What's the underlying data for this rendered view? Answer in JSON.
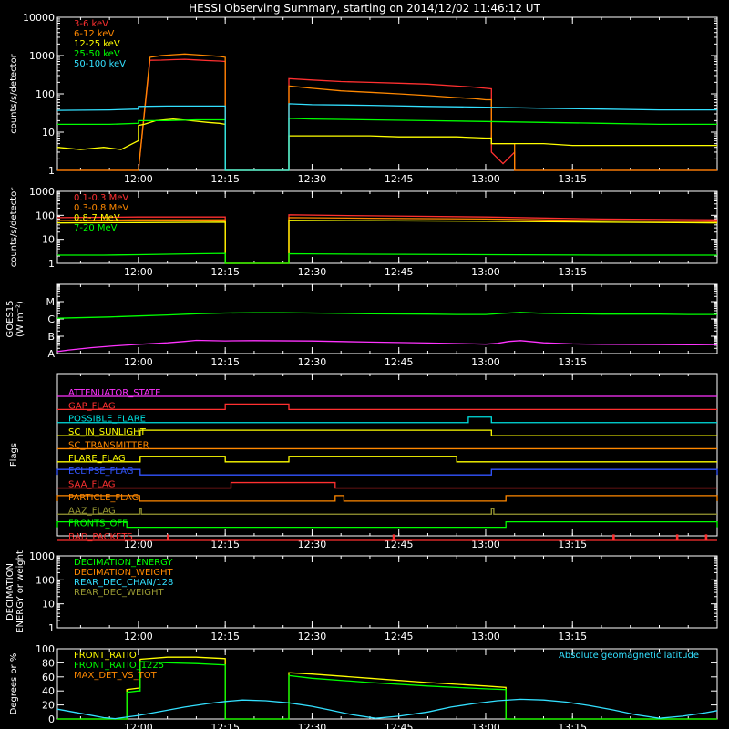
{
  "title": "HESSI Observing Summary, starting on 2014/12/02 11:46:12 UT",
  "time_axis": {
    "start_min": -14,
    "end_min": 100,
    "ticks": [
      {
        "min": 0,
        "label": "12:00"
      },
      {
        "min": 15,
        "label": "12:15"
      },
      {
        "min": 30,
        "label": "12:30"
      },
      {
        "min": 45,
        "label": "12:45"
      },
      {
        "min": 60,
        "label": "13:00"
      },
      {
        "min": 75,
        "label": "13:15"
      }
    ]
  },
  "chart_data": [
    {
      "id": "low",
      "type": "line",
      "ylabel": "counts/s/detector",
      "yscale": "log",
      "ylim": [
        1,
        10000
      ],
      "yticks": [
        {
          "v": 1,
          "label": "1"
        },
        {
          "v": 10,
          "label": "10"
        },
        {
          "v": 100,
          "label": "100"
        },
        {
          "v": 1000,
          "label": "1000"
        },
        {
          "v": 10000,
          "label": "10000"
        }
      ],
      "legend_position": "top-left",
      "series": [
        {
          "name": "3-6 keV",
          "color": "#ff3030",
          "x": [
            -14,
            0,
            0,
            2,
            4,
            6,
            8,
            10,
            12,
            14,
            15,
            15,
            20,
            26,
            26,
            30,
            35,
            40,
            45,
            50,
            55,
            58,
            60,
            61,
            61,
            63,
            65,
            65,
            70,
            75,
            80,
            85,
            90,
            95,
            100
          ],
          "y": [
            1,
            1,
            1,
            750,
            760,
            780,
            800,
            770,
            740,
            720,
            700,
            1,
            1,
            1,
            250,
            230,
            210,
            200,
            190,
            180,
            160,
            150,
            140,
            135,
            3,
            1.5,
            3,
            1,
            1,
            1,
            1,
            1,
            1,
            1,
            1
          ]
        },
        {
          "name": "6-12 keV",
          "color": "#ff8800",
          "x": [
            -14,
            0,
            0,
            2,
            4,
            6,
            8,
            10,
            12,
            14,
            15,
            15,
            20,
            26,
            26,
            30,
            35,
            40,
            45,
            50,
            55,
            58,
            60,
            61,
            61,
            65,
            65,
            70,
            75,
            80,
            85,
            90,
            95,
            100
          ],
          "y": [
            1,
            1,
            1,
            900,
            1000,
            1050,
            1100,
            1050,
            1000,
            950,
            900,
            1,
            1,
            1,
            160,
            140,
            120,
            110,
            100,
            90,
            80,
            75,
            70,
            70,
            5,
            5,
            1,
            1,
            1,
            1,
            1,
            1,
            1,
            1
          ]
        },
        {
          "name": "12-25 keV",
          "color": "#ffff00",
          "x": [
            -14,
            -10,
            -6,
            -3,
            -1,
            0,
            0,
            1,
            3,
            6,
            9,
            12,
            14,
            15,
            15,
            20,
            26,
            26,
            30,
            35,
            40,
            45,
            50,
            55,
            60,
            61,
            61,
            65,
            65,
            70,
            75,
            80,
            85,
            90,
            95,
            100
          ],
          "y": [
            4,
            3.5,
            4,
            3.5,
            5,
            6,
            15,
            16,
            20,
            22,
            20,
            18,
            17,
            16,
            1,
            1,
            1,
            8,
            8,
            8,
            8,
            7.5,
            7.5,
            7.5,
            7,
            7,
            5,
            5,
            5,
            5,
            4.5,
            4.5,
            4.5,
            4.5,
            4.5,
            4.5
          ]
        },
        {
          "name": "25-50 keV",
          "color": "#00ff00",
          "x": [
            -14,
            -5,
            0,
            0,
            5,
            10,
            15,
            15,
            20,
            26,
            26,
            30,
            40,
            50,
            60,
            70,
            80,
            90,
            100
          ],
          "y": [
            16,
            16,
            17,
            20,
            20,
            21,
            21,
            1,
            1,
            1,
            23,
            22,
            21,
            20,
            19,
            18,
            17,
            16,
            16
          ]
        },
        {
          "name": "50-100 keV",
          "color": "#33e0ff",
          "x": [
            -14,
            -5,
            0,
            0,
            5,
            10,
            15,
            15,
            20,
            26,
            26,
            30,
            40,
            50,
            60,
            70,
            80,
            90,
            100
          ],
          "y": [
            37,
            38,
            40,
            47,
            48,
            48,
            48,
            1,
            1,
            1,
            55,
            52,
            50,
            47,
            45,
            42,
            40,
            38,
            38
          ]
        }
      ]
    },
    {
      "id": "high",
      "type": "line",
      "ylabel": "counts/s/detector",
      "yscale": "log",
      "ylim": [
        1,
        1000
      ],
      "yticks": [
        {
          "v": 1,
          "label": "1"
        },
        {
          "v": 10,
          "label": "10"
        },
        {
          "v": 100,
          "label": "100"
        },
        {
          "v": 1000,
          "label": "1000"
        }
      ],
      "legend_position": "top-left",
      "series": [
        {
          "name": "0.1-0.3 MeV",
          "color": "#ff3030",
          "x": [
            -14,
            0,
            15,
            15,
            20,
            26,
            26,
            40,
            60,
            80,
            100
          ],
          "y": [
            80,
            85,
            85,
            1,
            1,
            1,
            105,
            95,
            85,
            70,
            65
          ]
        },
        {
          "name": "0.3-0.8 MeV",
          "color": "#ff8800",
          "x": [
            -14,
            0,
            15,
            15,
            20,
            26,
            26,
            40,
            60,
            80,
            100
          ],
          "y": [
            60,
            65,
            65,
            1,
            1,
            1,
            80,
            75,
            70,
            60,
            55
          ]
        },
        {
          "name": "0.8-7 MeV",
          "color": "#ffff00",
          "x": [
            -14,
            0,
            15,
            15,
            20,
            26,
            26,
            40,
            60,
            80,
            100
          ],
          "y": [
            48,
            50,
            52,
            1,
            1,
            1,
            62,
            60,
            57,
            52,
            48
          ]
        },
        {
          "name": "7-20 MeV",
          "color": "#00ff00",
          "x": [
            -14,
            -6,
            0,
            5,
            10,
            15,
            15,
            20,
            26,
            26,
            40,
            60,
            80,
            100
          ],
          "y": [
            2.2,
            2.2,
            2.3,
            2.4,
            2.5,
            2.6,
            1,
            1,
            1,
            2.5,
            2.4,
            2.3,
            2.2,
            2.2
          ]
        }
      ]
    },
    {
      "id": "goes",
      "type": "line",
      "ylabel": "GOES15",
      "ylabel2": "(W m⁻²)",
      "yscale": "log",
      "ylim": [
        1e-08,
        0.0001
      ],
      "yticks": [
        {
          "v": 1e-08,
          "label": "A"
        },
        {
          "v": 1e-07,
          "label": "B"
        },
        {
          "v": 1e-06,
          "label": "C"
        },
        {
          "v": 1e-05,
          "label": "M"
        }
      ],
      "series": [
        {
          "color": "#00ff00",
          "x": [
            -14,
            -5,
            0,
            5,
            10,
            15,
            20,
            25,
            30,
            40,
            50,
            55,
            60,
            63,
            66,
            70,
            75,
            80,
            90,
            95,
            100
          ],
          "y": [
            1.1e-06,
            1.3e-06,
            1.5e-06,
            1.7e-06,
            2e-06,
            2.2e-06,
            2.3e-06,
            2.3e-06,
            2.2e-06,
            2e-06,
            1.9e-06,
            1.8e-06,
            1.8e-06,
            2.1e-06,
            2.4e-06,
            2.1e-06,
            2e-06,
            1.9e-06,
            1.9e-06,
            1.8e-06,
            1.8e-06
          ]
        },
        {
          "color": "#ff33ff",
          "x": [
            -14,
            -12,
            -8,
            -4,
            0,
            5,
            8,
            10,
            15,
            20,
            30,
            40,
            50,
            55,
            58,
            60,
            62,
            64,
            66,
            70,
            75,
            80,
            90,
            95,
            100
          ],
          "y": [
            1.3e-08,
            1.6e-08,
            2.2e-08,
            2.8e-08,
            3.4e-08,
            4.2e-08,
            5e-08,
            5.8e-08,
            5.4e-08,
            5.6e-08,
            5.3e-08,
            4.6e-08,
            4.1e-08,
            3.8e-08,
            3.6e-08,
            3.5e-08,
            3.9e-08,
            5e-08,
            5.6e-08,
            4.2e-08,
            3.6e-08,
            3.4e-08,
            3.3e-08,
            3.2e-08,
            3.3e-08
          ]
        }
      ]
    },
    {
      "id": "flags",
      "type": "line",
      "ylabel": "Flags",
      "flags": [
        {
          "name": "ATTENUATOR_STATE",
          "color": "#ff33ff",
          "on": []
        },
        {
          "name": "GAP_FLAG",
          "color": "#ff3030",
          "on": [
            [
              15,
              26
            ]
          ]
        },
        {
          "name": "POSSIBLE_FLARE",
          "color": "#00e0e0",
          "on": [
            [
              57,
              61
            ]
          ]
        },
        {
          "name": "SC_IN_SUNLIGHT",
          "color": "#ffff00",
          "on": [
            [
              0.3,
              61
            ]
          ]
        },
        {
          "name": "SC_TRANSMITTER",
          "color": "#ff8800",
          "on": []
        },
        {
          "name": "FLARE_FLAG",
          "color": "#ffff00",
          "on": [
            [
              0.3,
              15
            ],
            [
              26,
              55
            ]
          ]
        },
        {
          "name": "ECLIPSE_FLAG",
          "color": "#3355ff",
          "on": [
            [
              -14,
              0.3
            ],
            [
              61,
              100
            ]
          ]
        },
        {
          "name": "SAA_FLAG",
          "color": "#ff3030",
          "on": [
            [
              16,
              34
            ]
          ]
        },
        {
          "name": "PARTICLE_FLAG",
          "color": "#ff8800",
          "on": [
            [
              -14,
              0.2
            ],
            [
              34,
              35.5
            ],
            [
              63.5,
              100
            ]
          ]
        },
        {
          "name": "AAZ_FLAG",
          "color": "#999933",
          "on": [
            [
              0.2,
              0.5
            ],
            [
              61,
              61.4
            ]
          ]
        },
        {
          "name": "FRONTS_OFF",
          "color": "#00ff00",
          "on": [
            [
              -14,
              -2
            ],
            [
              63.5,
              100
            ]
          ]
        },
        {
          "name": "BAD_PACKETS",
          "color": "#ff3030",
          "on": [
            [
              5,
              5.2
            ],
            [
              44,
              44.2
            ],
            [
              82,
              82.2
            ],
            [
              93,
              93.2
            ],
            [
              98,
              98.2
            ]
          ]
        }
      ]
    },
    {
      "id": "decim",
      "type": "line",
      "ylabel": "DECIMATION",
      "ylabel2": "ENERGY or weight",
      "yscale": "log",
      "ylim": [
        1,
        1000
      ],
      "yticks": [
        {
          "v": 1,
          "label": "1"
        },
        {
          "v": 10,
          "label": "10"
        },
        {
          "v": 100,
          "label": "100"
        },
        {
          "v": 1000,
          "label": "1000"
        }
      ],
      "legend_position": "top-left",
      "series": [
        {
          "name": "DECIMATION_ENERGY",
          "color": "#00ff00",
          "x": [],
          "y": []
        },
        {
          "name": "DECIMATION_WEIGHT",
          "color": "#ff8800",
          "x": [],
          "y": []
        },
        {
          "name": "REAR_DEC_CHAN/128",
          "color": "#33e0ff",
          "x": [],
          "y": []
        },
        {
          "name": "REAR_DEC_WEIGHT",
          "color": "#999933",
          "x": [],
          "y": []
        }
      ]
    },
    {
      "id": "ratio",
      "type": "line",
      "ylabel": "Degrees or %",
      "yscale": "linear",
      "ylim": [
        0,
        100
      ],
      "yticks": [
        {
          "v": 0,
          "label": "0"
        },
        {
          "v": 20,
          "label": "20"
        },
        {
          "v": 40,
          "label": "40"
        },
        {
          "v": 60,
          "label": "60"
        },
        {
          "v": 80,
          "label": "80"
        },
        {
          "v": 100,
          "label": "100"
        }
      ],
      "legend_position": "top-left",
      "right_note": "Absolute geomagnetic latitude",
      "right_note_color": "#33e0ff",
      "series": [
        {
          "name": "FRONT_RATIO",
          "color": "#ffff00",
          "x": [
            -14,
            -2,
            -2,
            0,
            0.3,
            0.3,
            5,
            10,
            15,
            15,
            20,
            26,
            26,
            30,
            40,
            50,
            60,
            63.5,
            63.5,
            70,
            80,
            90,
            100
          ],
          "y": [
            0,
            0,
            42,
            44,
            45,
            85,
            88,
            88,
            86,
            0,
            0,
            0,
            66,
            64,
            58,
            52,
            47,
            45,
            0,
            0,
            0,
            0,
            0
          ]
        },
        {
          "name": "FRONT_RATIO_1225",
          "color": "#00ff00",
          "x": [
            -14,
            -2,
            -2,
            0,
            0.3,
            0.3,
            5,
            10,
            15,
            15,
            20,
            26,
            26,
            30,
            40,
            50,
            60,
            63.5,
            63.5,
            70,
            80,
            90,
            100
          ],
          "y": [
            0,
            0,
            38,
            40,
            40,
            82,
            80,
            79,
            77,
            0,
            0,
            0,
            62,
            58,
            52,
            47,
            43,
            42,
            0,
            0,
            0,
            0,
            0
          ]
        },
        {
          "name": "MAX_DET_VS_TOT",
          "color": "#ff8800",
          "x": [],
          "y": []
        },
        {
          "color": "#33e0ff",
          "x": [
            -14,
            -10,
            -6,
            -4,
            0,
            4,
            8,
            12,
            15,
            18,
            22,
            26,
            30,
            33,
            37,
            41,
            45,
            50,
            54,
            58,
            62,
            66,
            70,
            74,
            78,
            82,
            86,
            90,
            94,
            98,
            100
          ],
          "y": [
            14,
            8,
            2,
            0.5,
            5,
            11,
            17,
            22,
            25,
            27,
            26,
            23,
            18,
            13,
            6,
            1,
            4,
            10,
            17,
            22,
            26,
            28,
            27,
            24,
            19,
            13,
            6,
            1,
            4,
            9,
            12
          ]
        }
      ]
    }
  ]
}
